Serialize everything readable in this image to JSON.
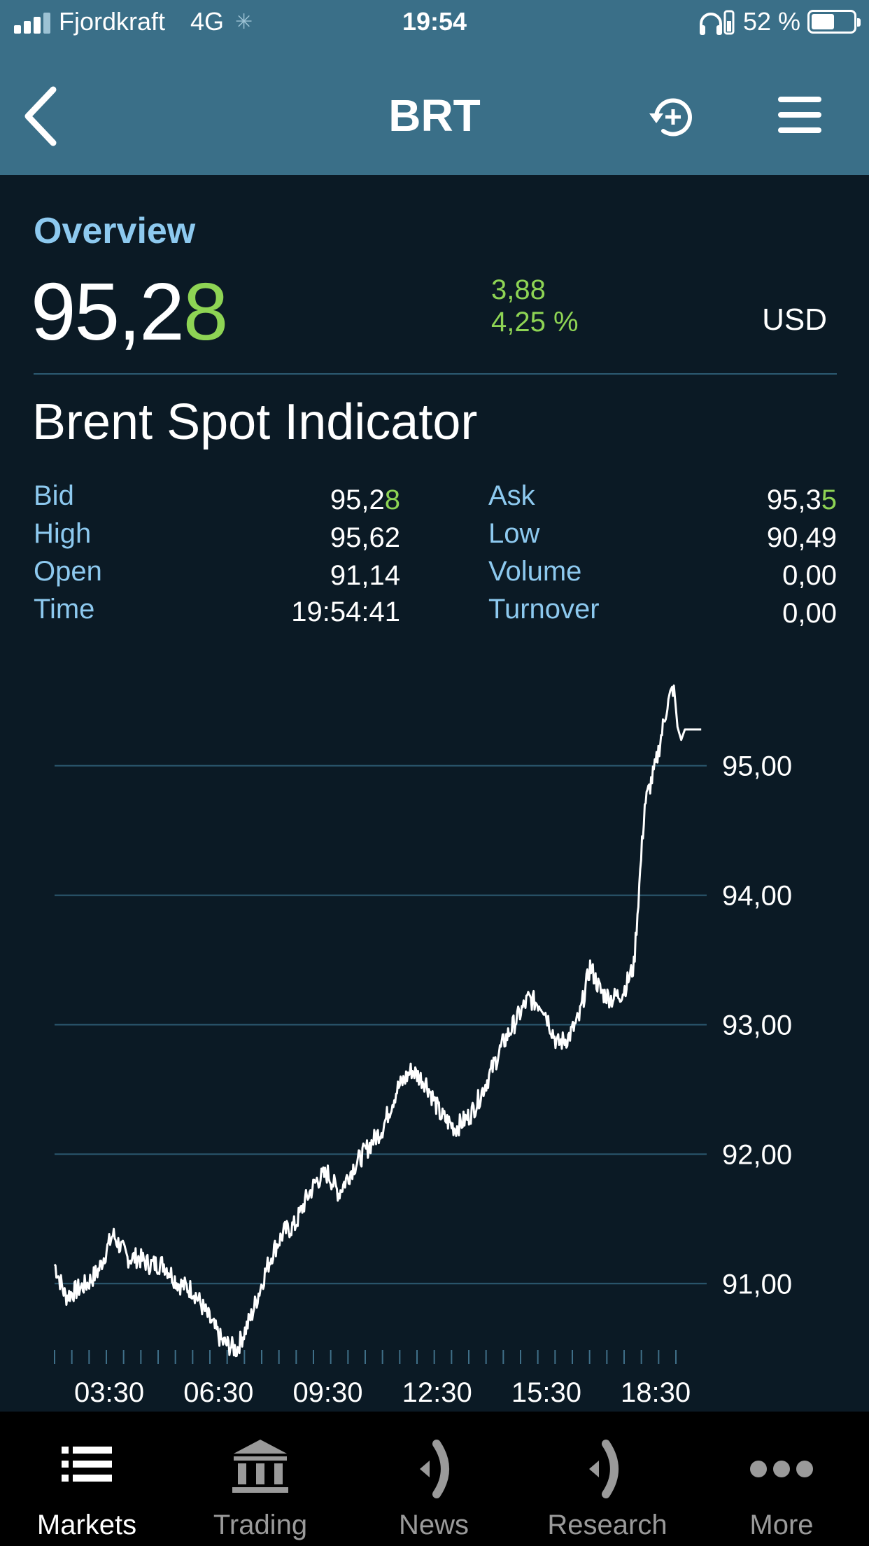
{
  "status_bar": {
    "carrier": "Fjordkraft",
    "network": "4G",
    "time": "19:54",
    "battery_percent": "52 %",
    "battery_level": 0.52
  },
  "header": {
    "title": "BRT",
    "icons": {
      "back": "chevron-left-icon",
      "history": "history-add-icon",
      "menu": "hamburger-menu-icon"
    }
  },
  "overview": {
    "section_title": "Overview",
    "price_main": "95,2",
    "price_last_digit": "8",
    "change_abs": "3,88",
    "change_pct": "4,25 %",
    "currency": "USD",
    "instrument_name": "Brent Spot Indicator"
  },
  "stats": {
    "bid": {
      "label": "Bid",
      "value_main": "95,2",
      "value_last": "8"
    },
    "ask": {
      "label": "Ask",
      "value_main": "95,3",
      "value_last": "5"
    },
    "high": {
      "label": "High",
      "value": "95,62"
    },
    "low": {
      "label": "Low",
      "value": "90,49"
    },
    "open": {
      "label": "Open",
      "value": "91,14"
    },
    "volume": {
      "label": "Volume",
      "value": "0,00"
    },
    "time": {
      "label": "Time",
      "value": "19:54:41"
    },
    "turnover": {
      "label": "Turnover",
      "value": "0,00"
    }
  },
  "colors": {
    "header_bg": "#3a6f88",
    "page_bg": "#0b1a25",
    "label_blue": "#8dc9ef",
    "up_green": "#8ed454",
    "gridline": "#2c5a72"
  },
  "chart_data": {
    "type": "line",
    "title": "",
    "xlabel": "",
    "ylabel": "",
    "x_tick_labels": [
      "03:30",
      "06:30",
      "09:30",
      "12:30",
      "15:30",
      "18:30"
    ],
    "x_ticks_hours": [
      3.5,
      6.5,
      9.5,
      12.5,
      15.5,
      18.5
    ],
    "y_tick_labels": [
      "95,00",
      "94,00",
      "93,00",
      "92,00",
      "91,00"
    ],
    "y_ticks": [
      95,
      94,
      93,
      92,
      91
    ],
    "xlim_hours": [
      2.0,
      19.9
    ],
    "ylim": [
      90.45,
      95.75
    ],
    "grid": true,
    "legend": "none",
    "series": [
      {
        "x_hours": [
          2.0,
          2.3,
          2.6,
          2.9,
          3.2,
          3.6,
          4.0,
          4.3,
          4.6,
          5.0,
          5.4,
          5.8,
          6.2,
          6.6,
          7.0,
          7.4,
          7.8,
          8.0,
          8.3,
          8.6,
          8.9,
          9.2,
          9.5,
          9.8,
          10.2,
          10.6,
          11.0,
          11.4,
          11.8,
          12.2,
          12.6,
          13.0,
          13.4,
          13.6,
          14.0,
          14.3,
          14.6,
          15.0,
          15.4,
          15.8,
          16.1,
          16.4,
          16.7,
          17.0,
          17.3,
          17.6,
          17.9,
          18.2,
          18.5,
          18.8,
          19.0,
          19.1,
          19.2,
          19.3,
          19.4,
          19.45,
          19.5,
          19.6,
          19.75
        ],
        "values": [
          91.15,
          90.9,
          90.95,
          91.0,
          91.1,
          91.38,
          91.2,
          91.2,
          91.15,
          91.15,
          91.0,
          90.95,
          90.75,
          90.55,
          90.49,
          90.75,
          91.1,
          91.25,
          91.4,
          91.45,
          91.65,
          91.8,
          91.85,
          91.7,
          91.9,
          92.05,
          92.2,
          92.5,
          92.65,
          92.55,
          92.3,
          92.2,
          92.3,
          92.4,
          92.65,
          92.85,
          93.0,
          93.2,
          93.15,
          92.85,
          92.9,
          93.05,
          93.45,
          93.25,
          93.2,
          93.25,
          93.45,
          94.7,
          95.0,
          95.45,
          95.62,
          95.3,
          95.2,
          95.28,
          95.28,
          95.28,
          95.28,
          95.28,
          95.28
        ]
      }
    ]
  },
  "tabs": [
    {
      "label": "Markets",
      "icon": "list-icon",
      "active": true
    },
    {
      "label": "Trading",
      "icon": "bank-icon",
      "active": false
    },
    {
      "label": "News",
      "icon": "broadcast-icon",
      "active": false
    },
    {
      "label": "Research",
      "icon": "broadcast-icon",
      "active": false
    },
    {
      "label": "More",
      "icon": "more-dots-icon",
      "active": false
    }
  ]
}
